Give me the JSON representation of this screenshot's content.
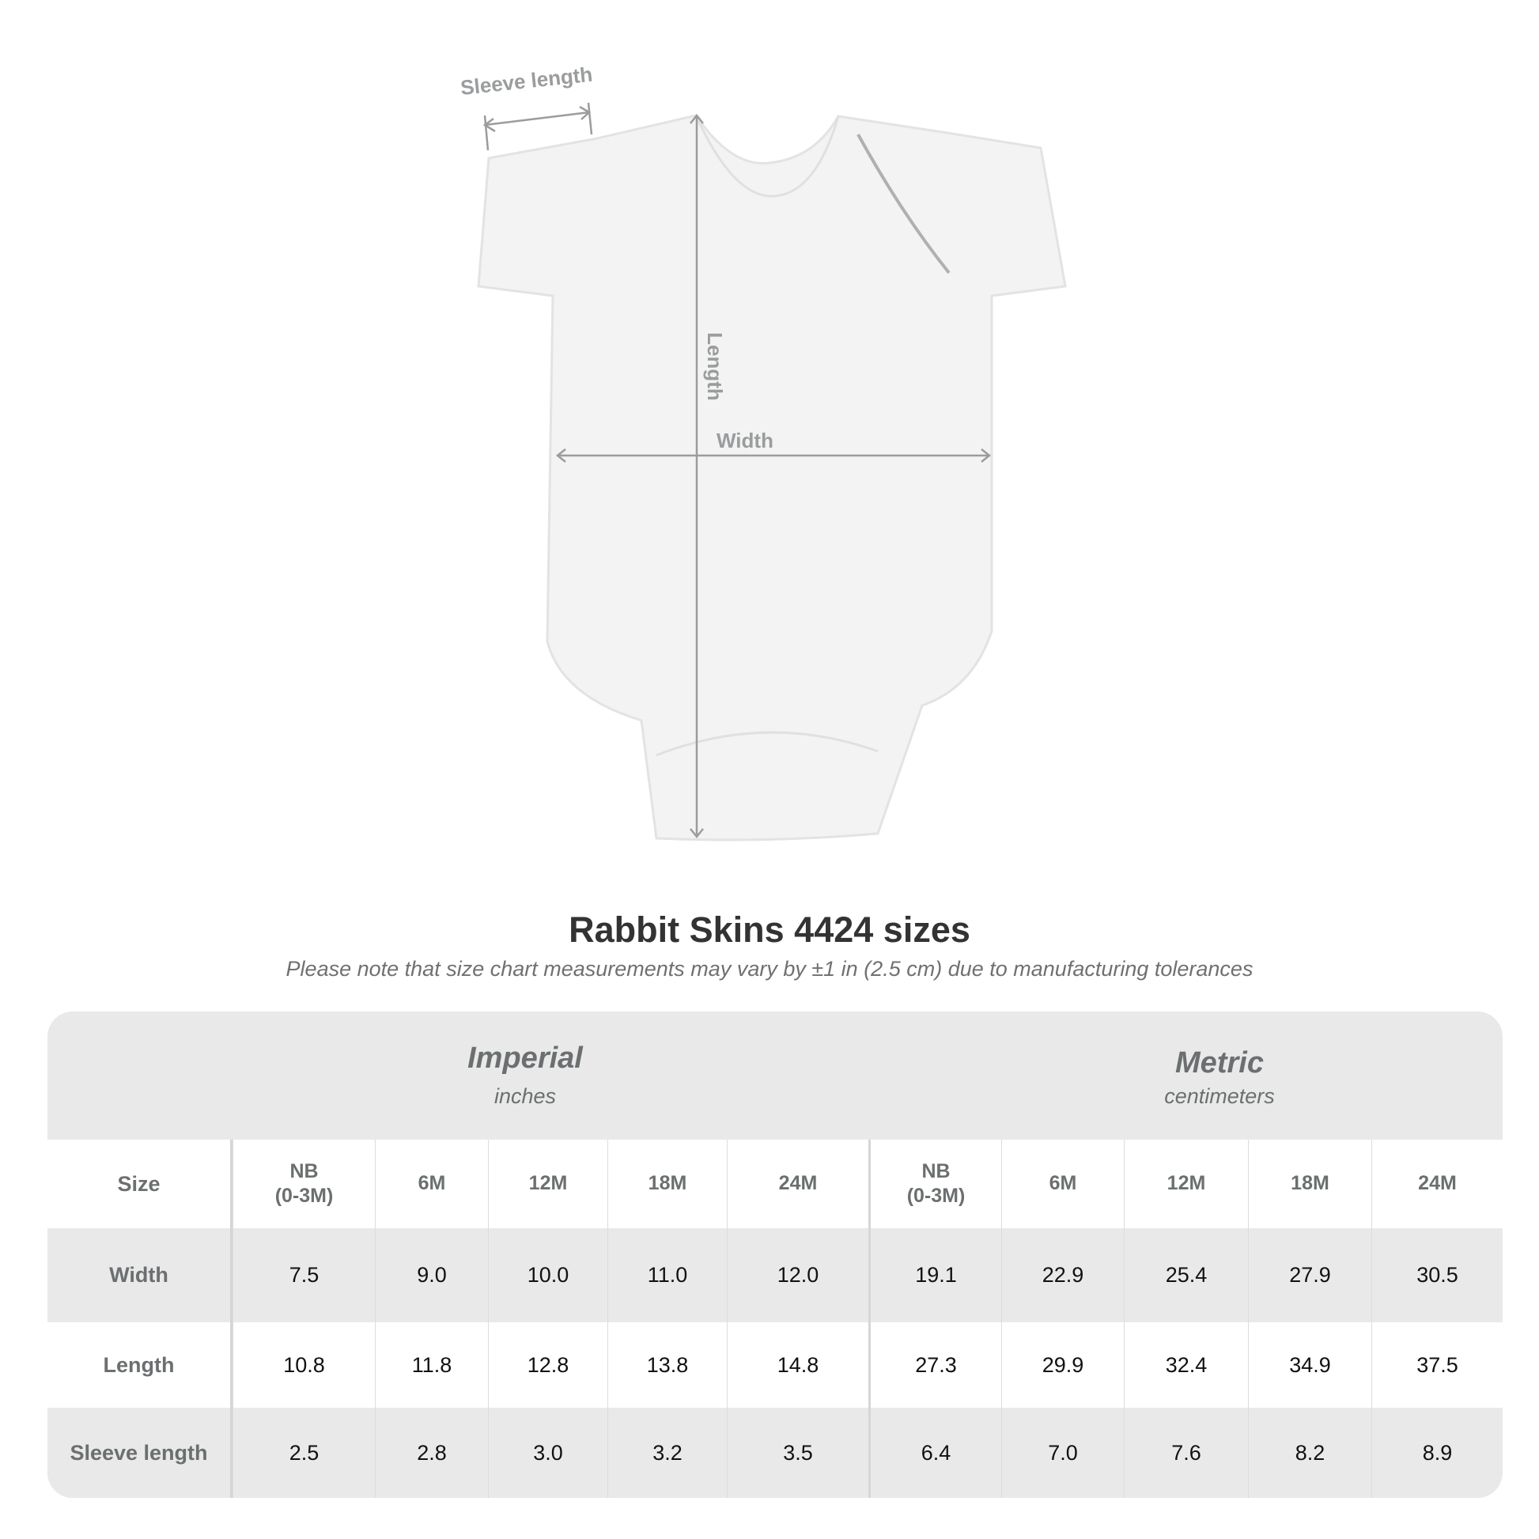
{
  "diagram": {
    "sleeve_label": "Sleeve length",
    "length_label": "Length",
    "width_label": "Width"
  },
  "title": "Rabbit Skins 4424 sizes",
  "subtitle": "Please note that size chart measurements may vary by ±1 in (2.5 cm) due to manufacturing tolerances",
  "table": {
    "imperial": {
      "title": "Imperial",
      "unit": "inches"
    },
    "metric": {
      "title": "Metric",
      "unit": "centimeters"
    },
    "size_header": "Size",
    "sizes": [
      "NB\n(0-3M)",
      "6M",
      "12M",
      "18M",
      "24M",
      "NB\n(0-3M)",
      "6M",
      "12M",
      "18M",
      "24M"
    ],
    "rows": [
      {
        "label": "Width",
        "values": [
          "7.5",
          "9.0",
          "10.0",
          "11.0",
          "12.0",
          "19.1",
          "22.9",
          "25.4",
          "27.9",
          "30.5"
        ]
      },
      {
        "label": "Length",
        "values": [
          "10.8",
          "11.8",
          "12.8",
          "13.8",
          "14.8",
          "27.3",
          "29.9",
          "32.4",
          "34.9",
          "37.5"
        ]
      },
      {
        "label": "Sleeve length",
        "values": [
          "2.5",
          "2.8",
          "3.0",
          "3.2",
          "3.5",
          "6.4",
          "7.0",
          "7.6",
          "8.2",
          "8.9"
        ]
      }
    ]
  },
  "colors": {
    "header_text": "#6b6f70",
    "band": "#e9e9e9",
    "measure_line": "#9a9c9d"
  }
}
